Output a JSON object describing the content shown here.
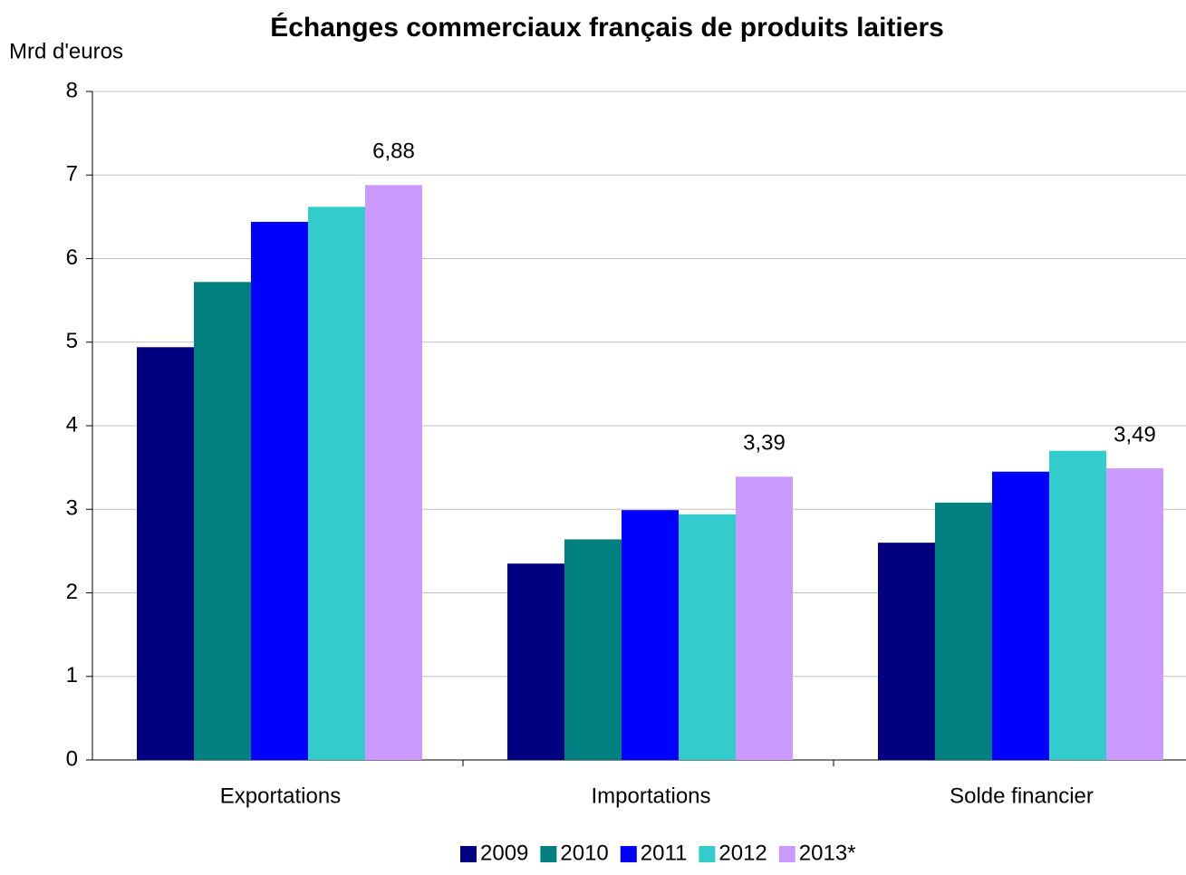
{
  "chart_data": {
    "type": "bar",
    "title": "Échanges commerciaux français de produits laitiers",
    "y_label": "Mrd d'euros",
    "categories": [
      "Exportations",
      "Importations",
      "Solde financier"
    ],
    "series": [
      {
        "name": "2009",
        "color": "#000080",
        "values": [
          4.94,
          2.35,
          2.6
        ]
      },
      {
        "name": "2010",
        "color": "#008080",
        "values": [
          5.72,
          2.64,
          3.08
        ]
      },
      {
        "name": "2011",
        "color": "#0000ff",
        "values": [
          6.44,
          2.99,
          3.45
        ]
      },
      {
        "name": "2012",
        "color": "#33cccc",
        "values": [
          6.62,
          2.94,
          3.7
        ]
      },
      {
        "name": "2013*",
        "color": "#cc99ff",
        "values": [
          6.88,
          3.39,
          3.49
        ],
        "value_labels": [
          "6,88",
          "3,39",
          "3,49"
        ]
      }
    ],
    "ylim": [
      0,
      8
    ],
    "yticks": [
      0,
      1,
      2,
      3,
      4,
      5,
      6,
      7,
      8
    ],
    "grid": true,
    "legend": "bottom"
  }
}
